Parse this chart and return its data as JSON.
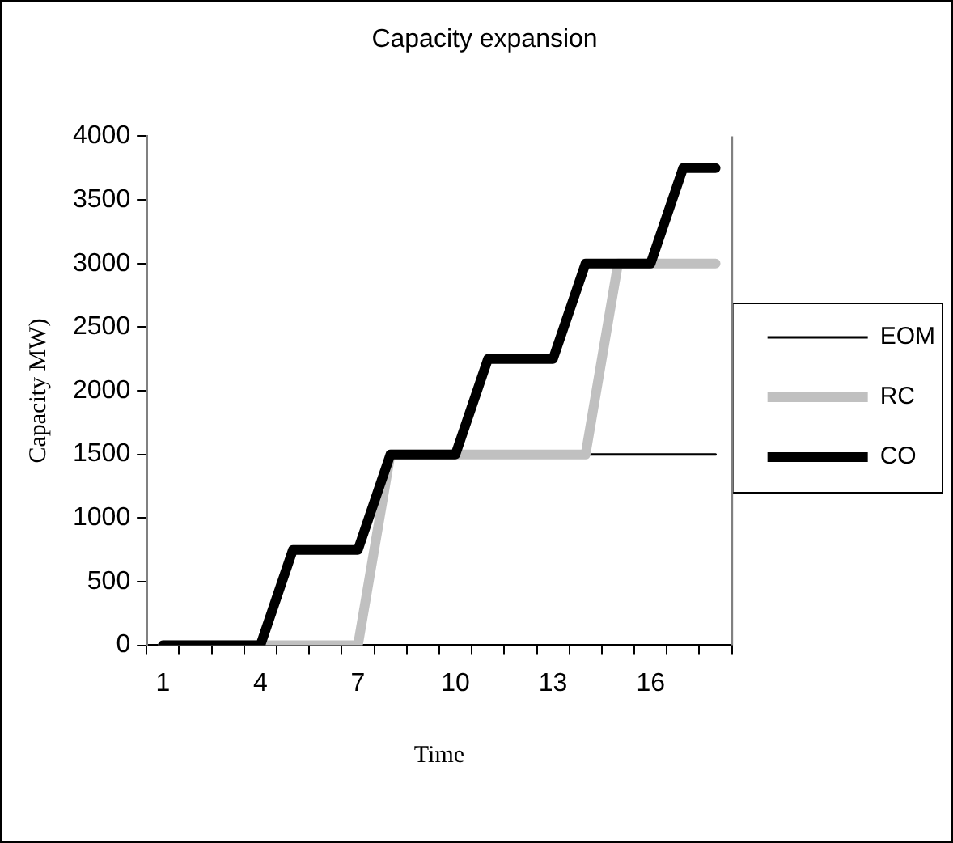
{
  "chart_data": {
    "type": "line",
    "title": "Capacity expansion",
    "xlabel": "Time",
    "ylabel": "Capacity MW)",
    "categories": [
      "1",
      null,
      null,
      "4",
      null,
      null,
      "7",
      null,
      null,
      "10",
      null,
      null,
      "13",
      null,
      null,
      "16",
      null,
      null
    ],
    "series": [
      {
        "name": "EOM",
        "color": "#000000",
        "values": [
          0,
          0,
          0,
          0,
          0,
          0,
          0,
          1500,
          1500,
          1500,
          null,
          null,
          null,
          1500,
          1500,
          1500,
          1500,
          1500
        ]
      },
      {
        "name": "RC",
        "color": "#c0c0c0",
        "values": [
          0,
          0,
          0,
          0,
          0,
          0,
          0,
          1500,
          1500,
          1500,
          1500,
          1500,
          1500,
          1500,
          3000,
          3000,
          3000,
          3000
        ]
      },
      {
        "name": "CO",
        "color": "#000000",
        "values": [
          0,
          0,
          0,
          0,
          750,
          750,
          750,
          1500,
          1500,
          1500,
          2250,
          2250,
          2250,
          3000,
          3000,
          3000,
          3750,
          3750
        ]
      }
    ],
    "ylim": [
      0,
      4000
    ],
    "yticks": [
      0,
      500,
      1000,
      1500,
      2000,
      2500,
      3000,
      3500,
      4000
    ],
    "grid": false,
    "legend": "right",
    "marker": "none",
    "line_style": "solid"
  }
}
